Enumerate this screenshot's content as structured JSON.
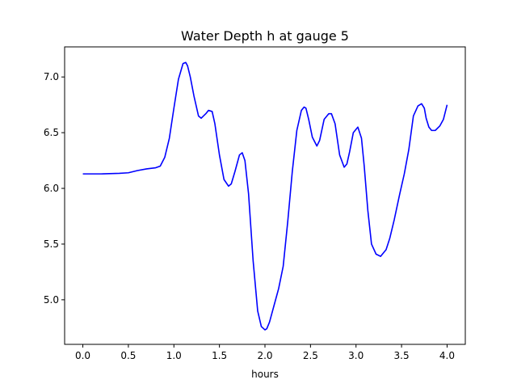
{
  "chart_data": {
    "type": "line",
    "title": "Water Depth h at gauge 5",
    "xlabel": "hours",
    "ylabel": "",
    "xlim": [
      -0.2,
      4.2
    ],
    "ylim": [
      4.6,
      7.27
    ],
    "grid": false,
    "x_ticks": [
      0.0,
      0.5,
      1.0,
      1.5,
      2.0,
      2.5,
      3.0,
      3.5,
      4.0
    ],
    "x_tick_labels": [
      "0.0",
      "0.5",
      "1.0",
      "1.5",
      "2.0",
      "2.5",
      "3.0",
      "3.5",
      "4.0"
    ],
    "y_ticks": [
      5.0,
      5.5,
      6.0,
      6.5,
      7.0
    ],
    "y_tick_labels": [
      "5.0",
      "5.5",
      "6.0",
      "6.5",
      "7.0"
    ],
    "series": [
      {
        "color": "#0000ff",
        "x": [
          0.0,
          0.2,
          0.4,
          0.5,
          0.6,
          0.7,
          0.8,
          0.85,
          0.9,
          0.95,
          1.0,
          1.05,
          1.1,
          1.13,
          1.15,
          1.18,
          1.22,
          1.27,
          1.3,
          1.35,
          1.38,
          1.42,
          1.45,
          1.5,
          1.55,
          1.6,
          1.63,
          1.67,
          1.72,
          1.75,
          1.78,
          1.82,
          1.87,
          1.92,
          1.96,
          2.0,
          2.02,
          2.05,
          2.1,
          2.15,
          2.2,
          2.25,
          2.3,
          2.35,
          2.4,
          2.43,
          2.45,
          2.48,
          2.52,
          2.57,
          2.6,
          2.65,
          2.7,
          2.73,
          2.77,
          2.82,
          2.87,
          2.9,
          2.93,
          2.97,
          3.02,
          3.06,
          3.09,
          3.13,
          3.17,
          3.22,
          3.27,
          3.3,
          3.33,
          3.35,
          3.37,
          3.42,
          3.48,
          3.53,
          3.58,
          3.63,
          3.68,
          3.72,
          3.75,
          3.77,
          3.8,
          3.83,
          3.87,
          3.92,
          3.96,
          4.0
        ],
        "y": [
          6.13,
          6.13,
          6.135,
          6.14,
          6.16,
          6.175,
          6.185,
          6.2,
          6.28,
          6.45,
          6.72,
          6.98,
          7.12,
          7.13,
          7.1,
          7.0,
          6.83,
          6.65,
          6.63,
          6.67,
          6.7,
          6.69,
          6.58,
          6.3,
          6.08,
          6.02,
          6.04,
          6.15,
          6.3,
          6.32,
          6.25,
          5.95,
          5.35,
          4.9,
          4.76,
          4.73,
          4.74,
          4.8,
          4.95,
          5.1,
          5.3,
          5.7,
          6.15,
          6.52,
          6.7,
          6.73,
          6.72,
          6.62,
          6.46,
          6.38,
          6.43,
          6.62,
          6.67,
          6.67,
          6.58,
          6.3,
          6.19,
          6.22,
          6.33,
          6.5,
          6.55,
          6.45,
          6.2,
          5.8,
          5.5,
          5.41,
          5.39,
          5.42,
          5.45,
          5.5,
          5.55,
          5.72,
          5.95,
          6.13,
          6.35,
          6.65,
          6.74,
          6.76,
          6.72,
          6.63,
          6.55,
          6.52,
          6.52,
          6.56,
          6.62,
          6.75
        ]
      }
    ]
  }
}
